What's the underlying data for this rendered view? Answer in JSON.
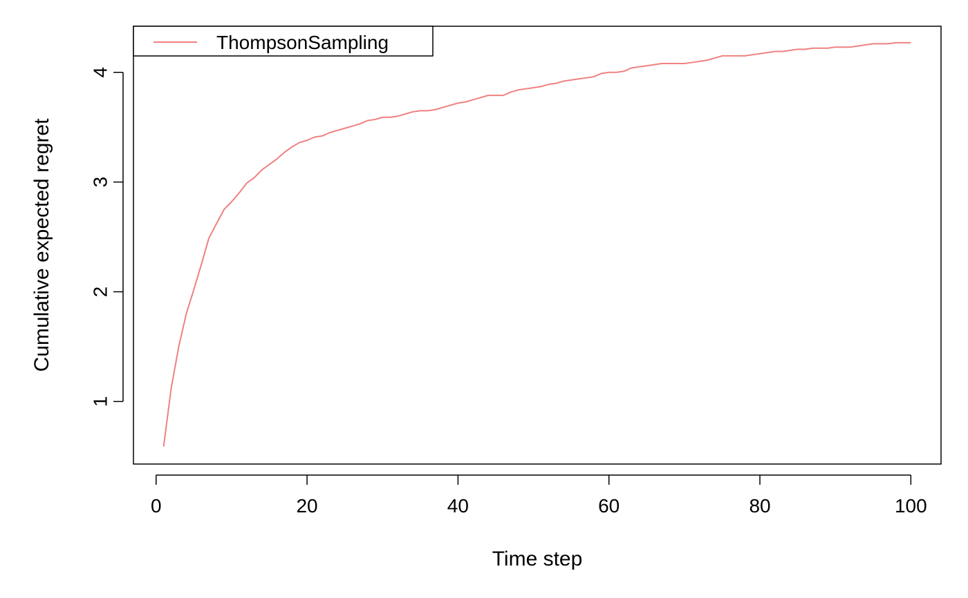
{
  "chart_data": {
    "type": "line",
    "title": "",
    "xlabel": "Time step",
    "ylabel": "Cumulative expected regret",
    "xlim": [
      -3,
      104
    ],
    "ylim": [
      0.43,
      4.42
    ],
    "xticks": [
      0,
      20,
      40,
      60,
      80,
      100
    ],
    "yticks": [
      1,
      2,
      3,
      4
    ],
    "grid": false,
    "legend": {
      "position": "top-left",
      "entries": [
        "ThompsonSampling"
      ]
    },
    "series": [
      {
        "name": "ThompsonSampling",
        "color": "#f08080",
        "x": [
          1,
          2,
          3,
          4,
          5,
          6,
          7,
          8,
          9,
          10,
          11,
          12,
          13,
          14,
          15,
          16,
          17,
          18,
          19,
          20,
          21,
          22,
          23,
          24,
          25,
          26,
          27,
          28,
          29,
          30,
          31,
          32,
          33,
          34,
          35,
          36,
          37,
          38,
          39,
          40,
          41,
          42,
          43,
          44,
          45,
          46,
          47,
          48,
          49,
          50,
          51,
          52,
          53,
          54,
          55,
          56,
          57,
          58,
          59,
          60,
          61,
          62,
          63,
          64,
          65,
          66,
          67,
          68,
          69,
          70,
          71,
          72,
          73,
          74,
          75,
          76,
          77,
          78,
          79,
          80,
          81,
          82,
          83,
          84,
          85,
          86,
          87,
          88,
          89,
          90,
          91,
          92,
          93,
          94,
          95,
          96,
          97,
          98,
          99,
          100
        ],
        "y": [
          0.59,
          1.12,
          1.5,
          1.8,
          2.02,
          2.25,
          2.49,
          2.62,
          2.75,
          2.82,
          2.9,
          2.99,
          3.04,
          3.11,
          3.16,
          3.21,
          3.27,
          3.32,
          3.36,
          3.38,
          3.41,
          3.42,
          3.45,
          3.47,
          3.49,
          3.51,
          3.53,
          3.56,
          3.57,
          3.59,
          3.59,
          3.6,
          3.62,
          3.64,
          3.65,
          3.65,
          3.66,
          3.68,
          3.7,
          3.72,
          3.73,
          3.75,
          3.77,
          3.79,
          3.79,
          3.79,
          3.82,
          3.84,
          3.85,
          3.86,
          3.87,
          3.89,
          3.9,
          3.92,
          3.93,
          3.94,
          3.95,
          3.96,
          3.99,
          4.0,
          4.0,
          4.01,
          4.04,
          4.05,
          4.06,
          4.07,
          4.08,
          4.08,
          4.08,
          4.08,
          4.09,
          4.1,
          4.11,
          4.13,
          4.15,
          4.15,
          4.15,
          4.15,
          4.16,
          4.17,
          4.18,
          4.19,
          4.19,
          4.2,
          4.21,
          4.21,
          4.22,
          4.22,
          4.22,
          4.23,
          4.23,
          4.23,
          4.24,
          4.25,
          4.26,
          4.26,
          4.26,
          4.27,
          4.27,
          4.27
        ]
      }
    ]
  }
}
